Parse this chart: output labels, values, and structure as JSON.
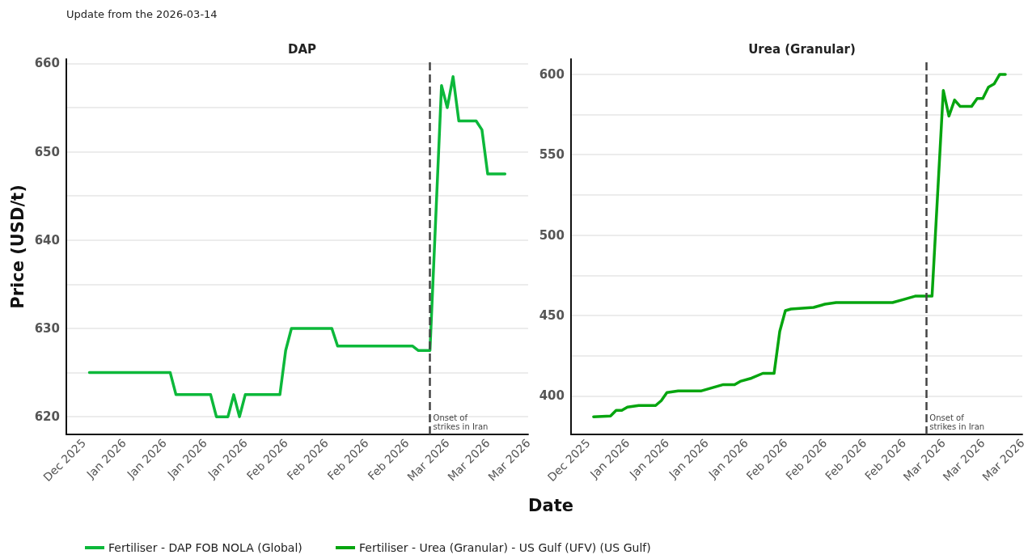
{
  "chart_data": [
    {
      "type": "line",
      "title": "DAP",
      "ylabel": "Price (USD/t)",
      "annotations": [
        "Update from the 2026-03-14"
      ],
      "x": [
        "2025-12-30",
        "2026-01-13",
        "2026-01-14",
        "2026-01-20",
        "2026-01-21",
        "2026-01-23",
        "2026-01-24",
        "2026-01-25",
        "2026-01-26",
        "2026-02-01",
        "2026-02-02",
        "2026-02-03",
        "2026-02-10",
        "2026-02-11",
        "2026-02-24",
        "2026-02-25",
        "2026-02-27",
        "2026-03-01",
        "2026-03-02",
        "2026-03-03",
        "2026-03-04",
        "2026-03-07",
        "2026-03-08",
        "2026-03-09",
        "2026-03-12"
      ],
      "series": [
        {
          "name": "Fertiliser - DAP FOB NOLA (Global)",
          "color": "#0cb83a",
          "values": [
            625,
            625,
            622.5,
            622.5,
            620,
            620,
            622.5,
            620,
            622.5,
            622.5,
            627.5,
            630,
            630,
            628,
            628,
            627.5,
            627.5,
            657.5,
            655,
            658.5,
            653.5,
            653.5,
            652.5,
            647.5,
            647.5
          ]
        }
      ],
      "xlim": [
        "2025-12-26",
        "2026-03-16"
      ],
      "xticks": [
        {
          "value": "2025-12-29",
          "label": "Dec 2025"
        },
        {
          "value": "2026-01-05",
          "label": "Jan 2026"
        },
        {
          "value": "2026-01-12",
          "label": "Jan 2026"
        },
        {
          "value": "2026-01-19",
          "label": "Jan 2026"
        },
        {
          "value": "2026-01-26",
          "label": "Jan 2026"
        },
        {
          "value": "2026-02-02",
          "label": "Feb 2026"
        },
        {
          "value": "2026-02-09",
          "label": "Feb 2026"
        },
        {
          "value": "2026-02-16",
          "label": "Feb 2026"
        },
        {
          "value": "2026-02-23",
          "label": "Feb 2026"
        },
        {
          "value": "2026-03-02",
          "label": "Mar 2026"
        },
        {
          "value": "2026-03-09",
          "label": "Mar 2026"
        },
        {
          "value": "2026-03-16",
          "label": "Mar 2026"
        }
      ],
      "ylim": [
        618,
        660.5
      ],
      "yticks": [
        620,
        {
          "value": 625,
          "label": null
        },
        630,
        {
          "value": 635,
          "label": null
        },
        640,
        {
          "value": 645,
          "label": null
        },
        650,
        {
          "value": 655,
          "label": null
        },
        660
      ],
      "ref_lines": [
        {
          "axis": "x",
          "value": "2026-02-27",
          "label": "Onset of\nstrikes in Iran",
          "color": "#444444",
          "line_style": "dashed"
        }
      ],
      "grid": "y",
      "legend": "bottom"
    },
    {
      "type": "line",
      "title": "Urea (Granular)",
      "xlabel": "Date",
      "x": [
        "2025-12-30",
        "2026-01-02",
        "2026-01-03",
        "2026-01-04",
        "2026-01-05",
        "2026-01-07",
        "2026-01-10",
        "2026-01-11",
        "2026-01-12",
        "2026-01-14",
        "2026-01-18",
        "2026-01-20",
        "2026-01-22",
        "2026-01-24",
        "2026-01-25",
        "2026-01-27",
        "2026-01-29",
        "2026-01-31",
        "2026-02-01",
        "2026-02-02",
        "2026-02-03",
        "2026-02-07",
        "2026-02-09",
        "2026-02-11",
        "2026-02-16",
        "2026-02-21",
        "2026-02-23",
        "2026-02-25",
        "2026-02-28",
        "2026-03-02",
        "2026-03-03",
        "2026-03-04",
        "2026-03-05",
        "2026-03-07",
        "2026-03-08",
        "2026-03-09",
        "2026-03-10",
        "2026-03-11",
        "2026-03-12",
        "2026-03-13"
      ],
      "series": [
        {
          "name": "Fertiliser - Urea (Granular) - US Gulf (UFV) (US Gulf)",
          "color": "#06a50f",
          "values": [
            387,
            387.5,
            391,
            391,
            393,
            394,
            394,
            397,
            402,
            403,
            403,
            405,
            407,
            407,
            409,
            411,
            414,
            414,
            440,
            453,
            454,
            455,
            457,
            458,
            458,
            458,
            460,
            462,
            462,
            590,
            574,
            584,
            580,
            580,
            585,
            585,
            592,
            594,
            600,
            600
          ]
        }
      ],
      "xlim": [
        "2025-12-26",
        "2026-03-16"
      ],
      "xticks": [
        {
          "value": "2025-12-29",
          "label": "Dec 2025"
        },
        {
          "value": "2026-01-05",
          "label": "Jan 2026"
        },
        {
          "value": "2026-01-12",
          "label": "Jan 2026"
        },
        {
          "value": "2026-01-19",
          "label": "Jan 2026"
        },
        {
          "value": "2026-01-26",
          "label": "Jan 2026"
        },
        {
          "value": "2026-02-02",
          "label": "Feb 2026"
        },
        {
          "value": "2026-02-09",
          "label": "Feb 2026"
        },
        {
          "value": "2026-02-16",
          "label": "Feb 2026"
        },
        {
          "value": "2026-02-23",
          "label": "Feb 2026"
        },
        {
          "value": "2026-03-02",
          "label": "Mar 2026"
        },
        {
          "value": "2026-03-09",
          "label": "Mar 2026"
        },
        {
          "value": "2026-03-16",
          "label": "Mar 2026"
        }
      ],
      "ylim": [
        376,
        609.5
      ],
      "yticks": [
        400,
        {
          "value": 425,
          "label": null
        },
        450,
        {
          "value": 475,
          "label": null
        },
        500,
        {
          "value": 525,
          "label": null
        },
        550,
        {
          "value": 575,
          "label": null
        },
        600
      ],
      "ref_lines": [
        {
          "axis": "x",
          "value": "2026-02-27",
          "label": "Onset of\nstrikes in Iran",
          "color": "#444444",
          "line_style": "dashed"
        }
      ],
      "grid": "y",
      "legend": "bottom"
    }
  ]
}
